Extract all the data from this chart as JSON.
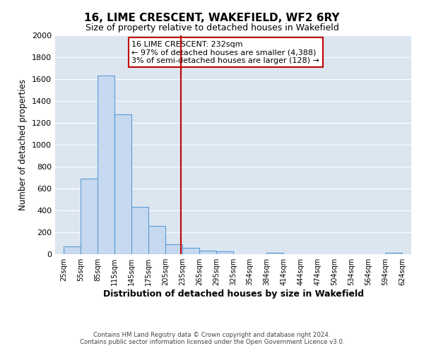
{
  "title": "16, LIME CRESCENT, WAKEFIELD, WF2 6RY",
  "subtitle": "Size of property relative to detached houses in Wakefield",
  "xlabel": "Distribution of detached houses by size in Wakefield",
  "ylabel": "Number of detached properties",
  "bar_left_edges": [
    25,
    55,
    85,
    115,
    145,
    175,
    205,
    235,
    265,
    295,
    325,
    354,
    384,
    414,
    444,
    474,
    504,
    534,
    564,
    594
  ],
  "bar_heights": [
    70,
    690,
    1630,
    1280,
    430,
    255,
    90,
    55,
    35,
    25,
    0,
    0,
    15,
    0,
    0,
    0,
    0,
    0,
    0,
    10
  ],
  "bar_widths": [
    30,
    30,
    30,
    30,
    30,
    30,
    30,
    30,
    30,
    30,
    29,
    30,
    30,
    30,
    30,
    30,
    30,
    30,
    30,
    30
  ],
  "bar_color": "#c6d9f0",
  "bar_edge_color": "#5b9bd5",
  "vline_x": 232,
  "vline_color": "#c00000",
  "annotation_lines": [
    "16 LIME CRESCENT: 232sqm",
    "← 97% of detached houses are smaller (4,388)",
    "3% of semi-detached houses are larger (128) →"
  ],
  "annotation_box_color": "#c00000",
  "xtick_labels": [
    "25sqm",
    "55sqm",
    "85sqm",
    "115sqm",
    "145sqm",
    "175sqm",
    "205sqm",
    "235sqm",
    "265sqm",
    "295sqm",
    "325sqm",
    "354sqm",
    "384sqm",
    "414sqm",
    "444sqm",
    "474sqm",
    "504sqm",
    "534sqm",
    "564sqm",
    "594sqm",
    "624sqm"
  ],
  "xtick_positions": [
    25,
    55,
    85,
    115,
    145,
    175,
    205,
    235,
    265,
    295,
    325,
    354,
    384,
    414,
    444,
    474,
    504,
    534,
    564,
    594,
    624
  ],
  "ylim": [
    0,
    2000
  ],
  "xlim": [
    10,
    640
  ],
  "ytick_values": [
    0,
    200,
    400,
    600,
    800,
    1000,
    1200,
    1400,
    1600,
    1800,
    2000
  ],
  "grid_color": "#ffffff",
  "bg_color": "#dce6f1",
  "footer_line1": "Contains HM Land Registry data © Crown copyright and database right 2024.",
  "footer_line2": "Contains public sector information licensed under the Open Government Licence v3.0."
}
